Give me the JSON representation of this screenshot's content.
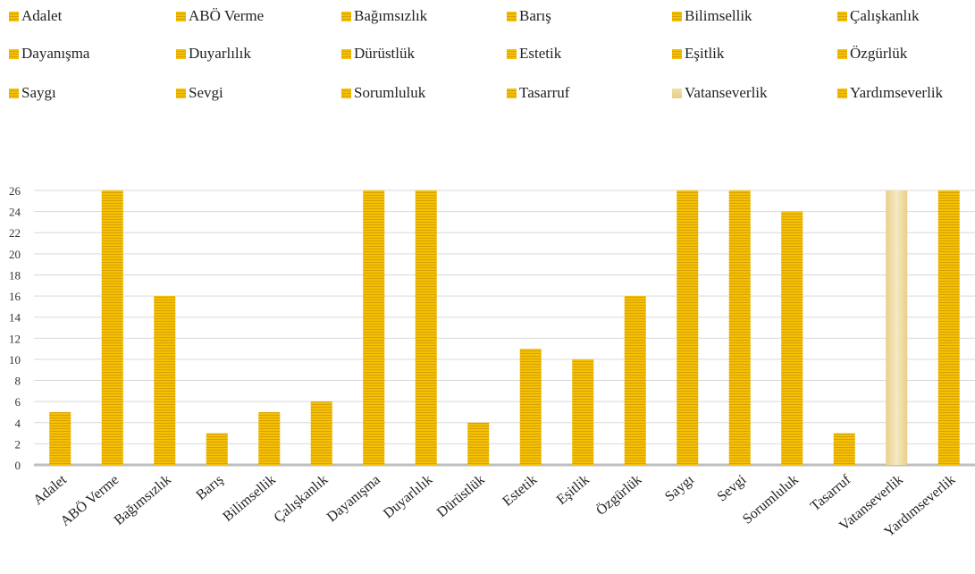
{
  "chart_data": {
    "type": "bar",
    "categories": [
      "Adalet",
      "ABÖ Verme",
      "Bağımsızlık",
      "Barış",
      "Bilimsellik",
      "Çalışkanlık",
      "Dayanışma",
      "Duyarlılık",
      "Dürüstlük",
      "Estetik",
      "Eşitlik",
      "Özgürlük",
      "Saygı",
      "Sevgi",
      "Sorumluluk",
      "Tasarruf",
      "Vatanseverlik",
      "Yardımseverlik"
    ],
    "values": [
      5,
      26,
      16,
      3,
      5,
      6,
      26,
      26,
      4,
      11,
      10,
      16,
      26,
      26,
      24,
      3,
      26,
      26
    ],
    "ylim": [
      0,
      26
    ],
    "yticks": [
      "0",
      "2",
      "4",
      "6",
      "8",
      "10",
      "12",
      "14",
      "16",
      "18",
      "20",
      "22",
      "24",
      "26"
    ],
    "grid": true,
    "legend_position": "top",
    "title": "",
    "xlabel": "",
    "ylabel": "",
    "colors": {
      "bar": "#f5c000",
      "bar_stripe": "#d6a10a",
      "bar_highlight": "#ecd596",
      "grid": "#d9d9d9",
      "axis": "#bfbfbf"
    },
    "highlighted_category": "Vatanseverlik"
  }
}
